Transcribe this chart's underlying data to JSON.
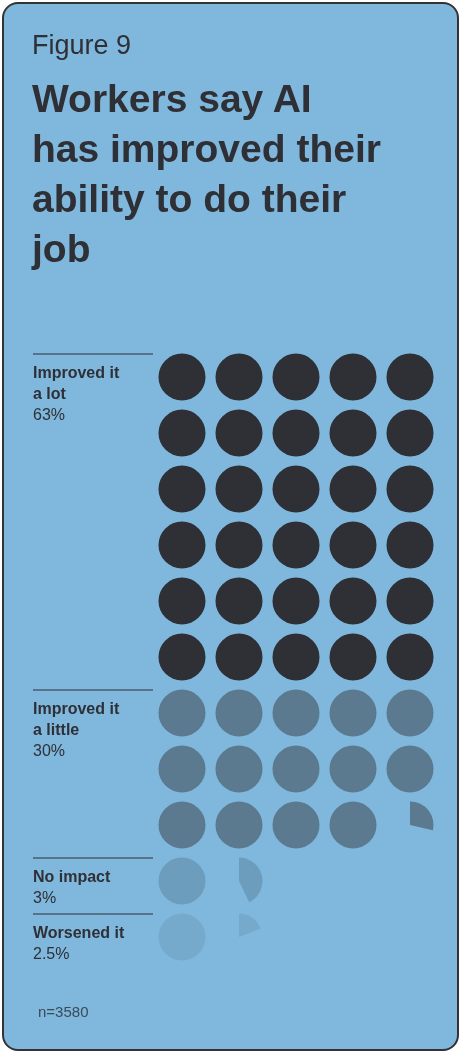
{
  "chart_data": {
    "type": "other",
    "subtitle": "Figure 9",
    "title": "Workers say AI has improved their ability to do their job",
    "categories": [
      "Improved it a lot",
      "Improved it a little",
      "No impact",
      "Worsened it"
    ],
    "values": [
      63,
      30,
      3,
      2.5
    ],
    "value_labels": [
      "63%",
      "30%",
      "3%",
      "2.5%"
    ],
    "colors": [
      "#2f2f36",
      "#5b7a8f",
      "#6c9dbd",
      "#76aacd"
    ],
    "annotations": [
      "n=3580"
    ]
  }
}
